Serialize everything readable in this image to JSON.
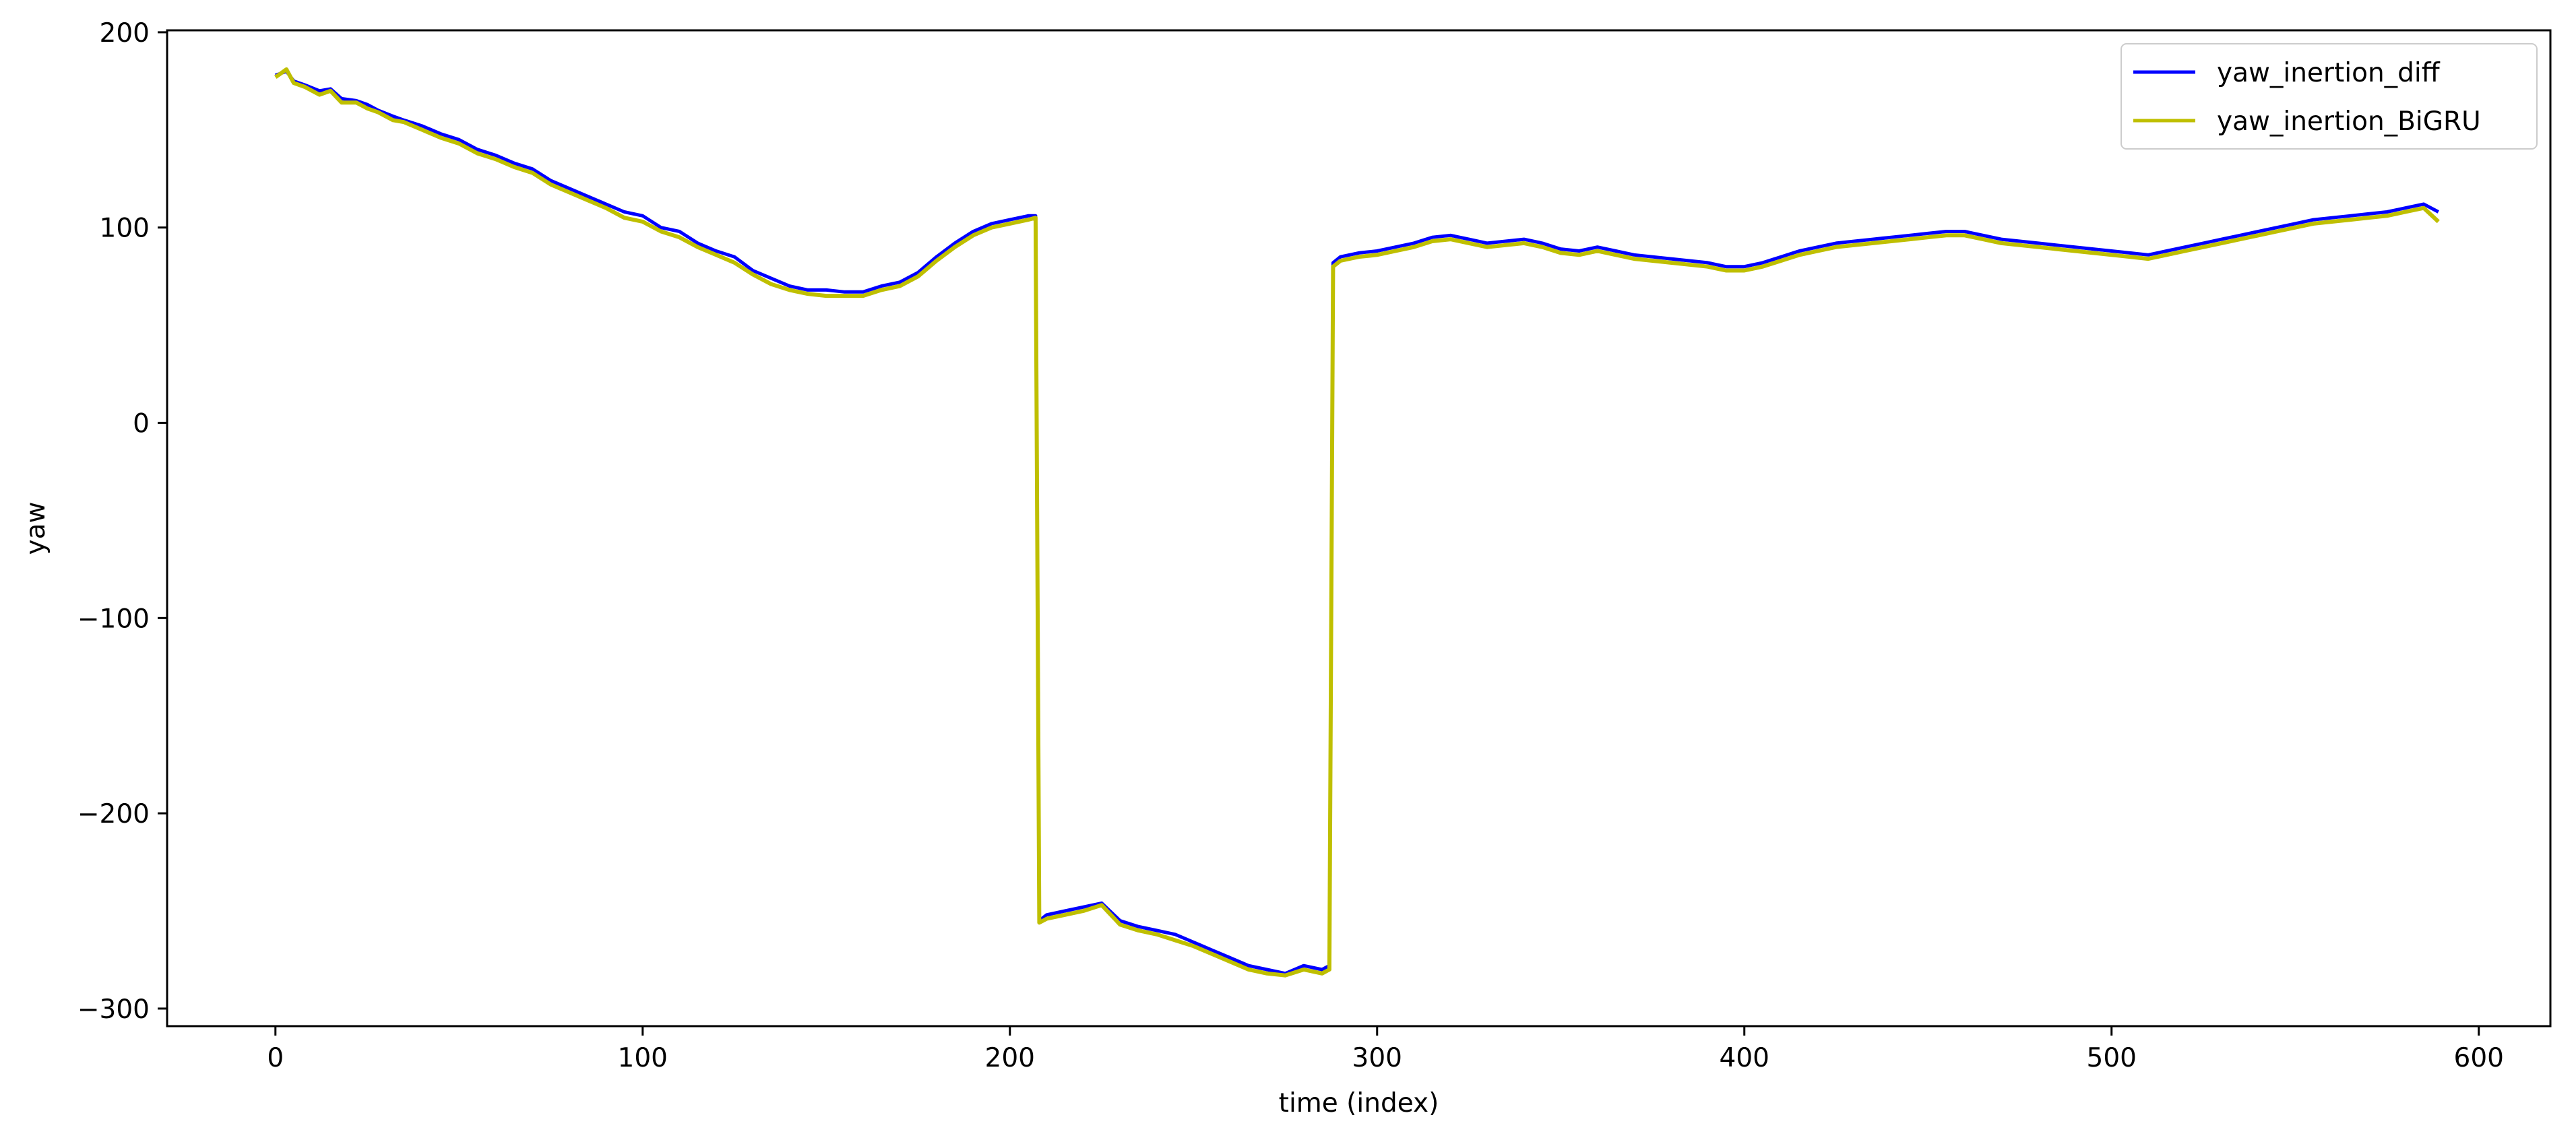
{
  "chart_data": {
    "type": "line",
    "title": "",
    "xlabel": "time (index)",
    "ylabel": "yaw",
    "xlim": [
      -29.5,
      619.5
    ],
    "ylim": [
      -309,
      201
    ],
    "xticks": [
      0,
      100,
      200,
      300,
      400,
      500,
      600
    ],
    "yticks": [
      200,
      100,
      0,
      -100,
      -200,
      -300
    ],
    "xtick_labels": [
      "0",
      "100",
      "200",
      "300",
      "400",
      "500",
      "600"
    ],
    "ytick_labels": [
      "200",
      "100",
      "0",
      "−100",
      "−200",
      "−300"
    ],
    "grid": false,
    "legend": {
      "position": "top-right"
    },
    "series": [
      {
        "name": "yaw_inertion_diff",
        "color": "#0000ff",
        "points": [
          [
            0,
            178
          ],
          [
            3,
            180
          ],
          [
            5,
            175
          ],
          [
            8,
            173
          ],
          [
            12,
            170
          ],
          [
            15,
            171
          ],
          [
            18,
            166
          ],
          [
            22,
            165
          ],
          [
            25,
            163
          ],
          [
            28,
            160
          ],
          [
            32,
            157
          ],
          [
            35,
            155
          ],
          [
            40,
            152
          ],
          [
            45,
            148
          ],
          [
            50,
            145
          ],
          [
            55,
            140
          ],
          [
            60,
            137
          ],
          [
            65,
            133
          ],
          [
            70,
            130
          ],
          [
            75,
            124
          ],
          [
            80,
            120
          ],
          [
            85,
            116
          ],
          [
            90,
            112
          ],
          [
            95,
            108
          ],
          [
            100,
            106
          ],
          [
            105,
            100
          ],
          [
            110,
            98
          ],
          [
            115,
            92
          ],
          [
            120,
            88
          ],
          [
            125,
            85
          ],
          [
            130,
            78
          ],
          [
            135,
            74
          ],
          [
            140,
            70
          ],
          [
            145,
            68
          ],
          [
            150,
            68
          ],
          [
            155,
            67
          ],
          [
            160,
            67
          ],
          [
            165,
            70
          ],
          [
            170,
            72
          ],
          [
            175,
            77
          ],
          [
            180,
            85
          ],
          [
            185,
            92
          ],
          [
            190,
            98
          ],
          [
            195,
            102
          ],
          [
            200,
            104
          ],
          [
            205,
            106
          ],
          [
            207,
            106
          ],
          [
            208,
            -255
          ],
          [
            210,
            -252
          ],
          [
            215,
            -250
          ],
          [
            220,
            -248
          ],
          [
            225,
            -246
          ],
          [
            230,
            -255
          ],
          [
            235,
            -258
          ],
          [
            240,
            -260
          ],
          [
            245,
            -262
          ],
          [
            250,
            -266
          ],
          [
            255,
            -270
          ],
          [
            260,
            -274
          ],
          [
            265,
            -278
          ],
          [
            270,
            -280
          ],
          [
            275,
            -282
          ],
          [
            280,
            -278
          ],
          [
            285,
            -280
          ],
          [
            287,
            -278
          ],
          [
            288,
            82
          ],
          [
            290,
            85
          ],
          [
            295,
            87
          ],
          [
            300,
            88
          ],
          [
            305,
            90
          ],
          [
            310,
            92
          ],
          [
            315,
            95
          ],
          [
            320,
            96
          ],
          [
            325,
            94
          ],
          [
            330,
            92
          ],
          [
            335,
            93
          ],
          [
            340,
            94
          ],
          [
            345,
            92
          ],
          [
            350,
            89
          ],
          [
            355,
            88
          ],
          [
            360,
            90
          ],
          [
            365,
            88
          ],
          [
            370,
            86
          ],
          [
            375,
            85
          ],
          [
            380,
            84
          ],
          [
            385,
            83
          ],
          [
            390,
            82
          ],
          [
            395,
            80
          ],
          [
            400,
            80
          ],
          [
            405,
            82
          ],
          [
            410,
            85
          ],
          [
            415,
            88
          ],
          [
            420,
            90
          ],
          [
            425,
            92
          ],
          [
            430,
            93
          ],
          [
            435,
            94
          ],
          [
            440,
            95
          ],
          [
            445,
            96
          ],
          [
            450,
            97
          ],
          [
            455,
            98
          ],
          [
            460,
            98
          ],
          [
            465,
            96
          ],
          [
            470,
            94
          ],
          [
            475,
            93
          ],
          [
            480,
            92
          ],
          [
            485,
            91
          ],
          [
            490,
            90
          ],
          [
            495,
            89
          ],
          [
            500,
            88
          ],
          [
            505,
            87
          ],
          [
            510,
            86
          ],
          [
            515,
            88
          ],
          [
            520,
            90
          ],
          [
            525,
            92
          ],
          [
            530,
            94
          ],
          [
            535,
            96
          ],
          [
            540,
            98
          ],
          [
            545,
            100
          ],
          [
            550,
            102
          ],
          [
            555,
            104
          ],
          [
            560,
            105
          ],
          [
            565,
            106
          ],
          [
            570,
            107
          ],
          [
            575,
            108
          ],
          [
            580,
            110
          ],
          [
            585,
            112
          ],
          [
            589,
            108
          ]
        ]
      },
      {
        "name": "yaw_inertion_BiGRU",
        "color": "#bfbf00",
        "points": [
          [
            0,
            177
          ],
          [
            3,
            181
          ],
          [
            5,
            174
          ],
          [
            8,
            172
          ],
          [
            12,
            168
          ],
          [
            15,
            170
          ],
          [
            18,
            164
          ],
          [
            22,
            164
          ],
          [
            25,
            161
          ],
          [
            28,
            159
          ],
          [
            32,
            155
          ],
          [
            35,
            154
          ],
          [
            40,
            150
          ],
          [
            45,
            146
          ],
          [
            50,
            143
          ],
          [
            55,
            138
          ],
          [
            60,
            135
          ],
          [
            65,
            131
          ],
          [
            70,
            128
          ],
          [
            75,
            122
          ],
          [
            80,
            118
          ],
          [
            85,
            114
          ],
          [
            90,
            110
          ],
          [
            95,
            105
          ],
          [
            100,
            103
          ],
          [
            105,
            98
          ],
          [
            110,
            95
          ],
          [
            115,
            90
          ],
          [
            120,
            86
          ],
          [
            125,
            82
          ],
          [
            130,
            76
          ],
          [
            135,
            71
          ],
          [
            140,
            68
          ],
          [
            145,
            66
          ],
          [
            150,
            65
          ],
          [
            155,
            65
          ],
          [
            160,
            65
          ],
          [
            165,
            68
          ],
          [
            170,
            70
          ],
          [
            175,
            75
          ],
          [
            180,
            83
          ],
          [
            185,
            90
          ],
          [
            190,
            96
          ],
          [
            195,
            100
          ],
          [
            200,
            102
          ],
          [
            205,
            104
          ],
          [
            207,
            105
          ],
          [
            208,
            -256
          ],
          [
            210,
            -254
          ],
          [
            215,
            -252
          ],
          [
            220,
            -250
          ],
          [
            225,
            -247
          ],
          [
            230,
            -257
          ],
          [
            235,
            -260
          ],
          [
            240,
            -262
          ],
          [
            245,
            -265
          ],
          [
            250,
            -268
          ],
          [
            255,
            -272
          ],
          [
            260,
            -276
          ],
          [
            265,
            -280
          ],
          [
            270,
            -282
          ],
          [
            275,
            -283
          ],
          [
            280,
            -280
          ],
          [
            285,
            -282
          ],
          [
            287,
            -280
          ],
          [
            288,
            80
          ],
          [
            290,
            83
          ],
          [
            295,
            85
          ],
          [
            300,
            86
          ],
          [
            305,
            88
          ],
          [
            310,
            90
          ],
          [
            315,
            93
          ],
          [
            320,
            94
          ],
          [
            325,
            92
          ],
          [
            330,
            90
          ],
          [
            335,
            91
          ],
          [
            340,
            92
          ],
          [
            345,
            90
          ],
          [
            350,
            87
          ],
          [
            355,
            86
          ],
          [
            360,
            88
          ],
          [
            365,
            86
          ],
          [
            370,
            84
          ],
          [
            375,
            83
          ],
          [
            380,
            82
          ],
          [
            385,
            81
          ],
          [
            390,
            80
          ],
          [
            395,
            78
          ],
          [
            400,
            78
          ],
          [
            405,
            80
          ],
          [
            410,
            83
          ],
          [
            415,
            86
          ],
          [
            420,
            88
          ],
          [
            425,
            90
          ],
          [
            430,
            91
          ],
          [
            435,
            92
          ],
          [
            440,
            93
          ],
          [
            445,
            94
          ],
          [
            450,
            95
          ],
          [
            455,
            96
          ],
          [
            460,
            96
          ],
          [
            465,
            94
          ],
          [
            470,
            92
          ],
          [
            475,
            91
          ],
          [
            480,
            90
          ],
          [
            485,
            89
          ],
          [
            490,
            88
          ],
          [
            495,
            87
          ],
          [
            500,
            86
          ],
          [
            505,
            85
          ],
          [
            510,
            84
          ],
          [
            515,
            86
          ],
          [
            520,
            88
          ],
          [
            525,
            90
          ],
          [
            530,
            92
          ],
          [
            535,
            94
          ],
          [
            540,
            96
          ],
          [
            545,
            98
          ],
          [
            550,
            100
          ],
          [
            555,
            102
          ],
          [
            560,
            103
          ],
          [
            565,
            104
          ],
          [
            570,
            105
          ],
          [
            575,
            106
          ],
          [
            580,
            108
          ],
          [
            585,
            110
          ],
          [
            589,
            103
          ]
        ]
      }
    ]
  }
}
